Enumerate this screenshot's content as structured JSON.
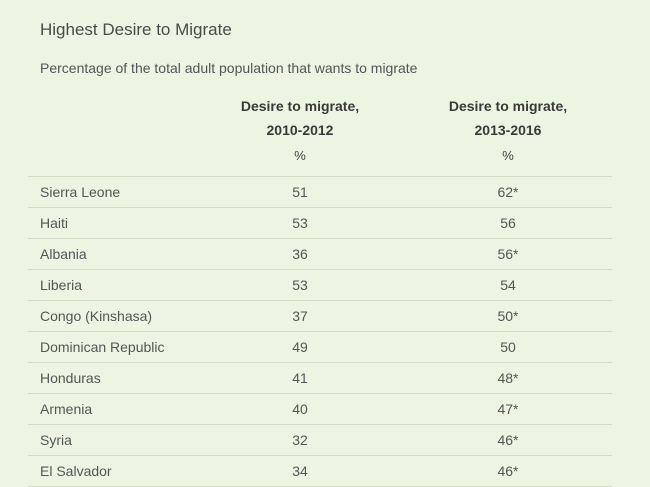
{
  "title": "Highest Desire to Migrate",
  "subtitle": "Percentage of the total adult population that wants to migrate",
  "chart_data": {
    "type": "table",
    "title": "Highest Desire to Migrate",
    "subtitle": "Percentage of the total adult population that wants to migrate",
    "columns": [
      {
        "line1": "Desire to migrate,",
        "line2": "2010-2012",
        "unit": "%"
      },
      {
        "line1": "Desire to migrate,",
        "line2": "2013-2016",
        "unit": "%"
      }
    ],
    "rows": [
      {
        "country": "Sierra Leone",
        "v1": "51",
        "v2": "62*"
      },
      {
        "country": "Haiti",
        "v1": "53",
        "v2": "56"
      },
      {
        "country": "Albania",
        "v1": "36",
        "v2": "56*"
      },
      {
        "country": "Liberia",
        "v1": "53",
        "v2": "54"
      },
      {
        "country": "Congo (Kinshasa)",
        "v1": "37",
        "v2": "50*"
      },
      {
        "country": "Dominican Republic",
        "v1": "49",
        "v2": "50"
      },
      {
        "country": "Honduras",
        "v1": "41",
        "v2": "48*"
      },
      {
        "country": "Armenia",
        "v1": "40",
        "v2": "47*"
      },
      {
        "country": "Syria",
        "v1": "32",
        "v2": "46*"
      },
      {
        "country": "El Salvador",
        "v1": "34",
        "v2": "46*"
      }
    ]
  }
}
